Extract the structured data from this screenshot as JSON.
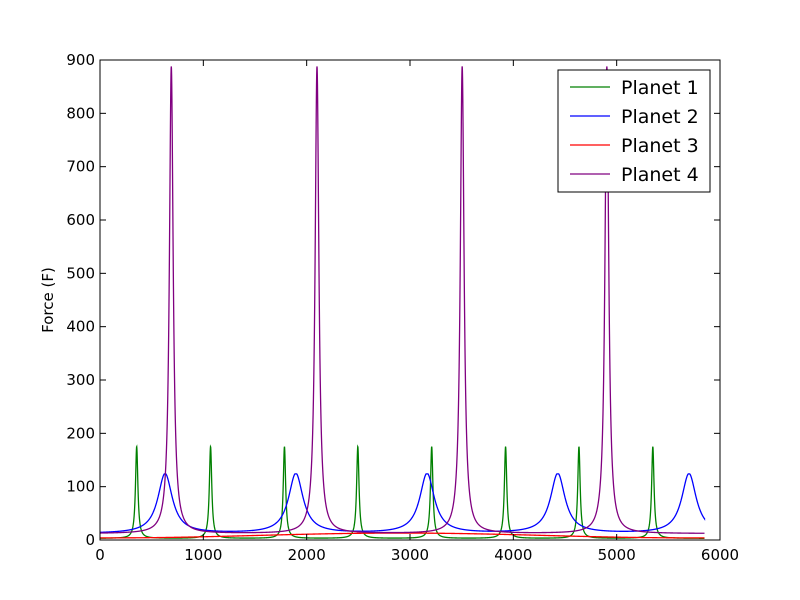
{
  "chart_data": {
    "type": "line",
    "title": "",
    "xlabel": "",
    "ylabel": "Force (F)",
    "xlim": [
      0,
      6000
    ],
    "ylim": [
      0,
      900
    ],
    "x_ticks": [
      0,
      1000,
      2000,
      3000,
      4000,
      5000,
      6000
    ],
    "y_ticks": [
      0,
      100,
      200,
      300,
      400,
      500,
      600,
      700,
      800,
      900
    ],
    "grid": false,
    "legend_position": "top-right",
    "x_range_data": [
      0,
      5850
    ],
    "series": [
      {
        "name": "Planet 1",
        "color": "#008000",
        "peaks_x": [
          355,
          1070,
          1785,
          2495,
          3210,
          3925,
          4635,
          5350
        ],
        "peak_value": 175,
        "base_value": 3,
        "width": 14
      },
      {
        "name": "Planet 2",
        "color": "#0000ff",
        "peaks_x": [
          630,
          1895,
          3165,
          4430,
          5700
        ],
        "peak_value": 124,
        "base_value": 12,
        "width": 85,
        "end_value": 41
      },
      {
        "name": "Planet 3",
        "color": "#ff0000",
        "peaks_x": [],
        "peak_value": 13,
        "base_value": 4,
        "trend": "slow sinusoid, ~4 to ~13"
      },
      {
        "name": "Planet 4",
        "color": "#800080",
        "peaks_x": [
          690,
          2100,
          3505,
          4905
        ],
        "peak_value": 888,
        "base_value": 12,
        "width": 22
      }
    ]
  }
}
